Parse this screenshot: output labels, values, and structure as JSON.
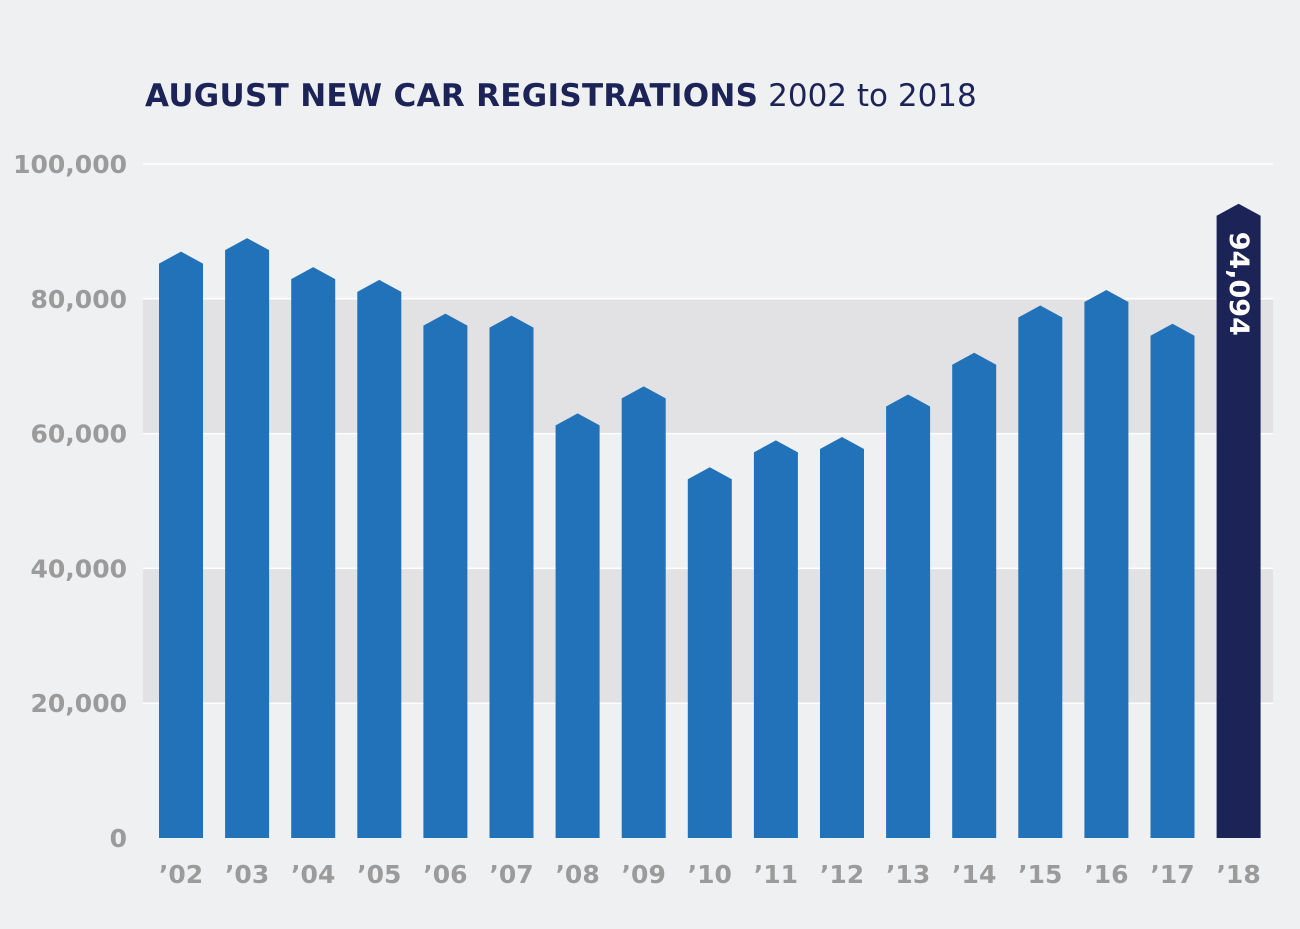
{
  "title": {
    "bold": "AUGUST NEW CAR REGISTRATIONS",
    "light": "2002 to 2018"
  },
  "colors": {
    "bar": "#2172b9",
    "highlight": "#1c2356",
    "band": "#e2e1e3",
    "background": "#eff0f2",
    "grid": "#ffffff",
    "axis_text": "#9b9b9b"
  },
  "chart_data": {
    "type": "bar",
    "title": "AUGUST NEW CAR REGISTRATIONS 2002 to 2018",
    "categories": [
      "’02",
      "’03",
      "’04",
      "’05",
      "’06",
      "’07",
      "’08",
      "’09",
      "’10",
      "’11",
      "’12",
      "’13",
      "’14",
      "’15",
      "’16",
      "’17",
      "’18"
    ],
    "values": [
      87000,
      89000,
      84700,
      82800,
      77800,
      77500,
      63000,
      67000,
      55000,
      59000,
      59500,
      65800,
      72000,
      79000,
      81300,
      76300,
      94094
    ],
    "highlight_index": 16,
    "data_labels": {
      "16": "94,094"
    },
    "yticks": [
      0,
      20000,
      40000,
      60000,
      80000,
      100000
    ],
    "ytick_labels": [
      "0",
      "20,000",
      "40,000",
      "60,000",
      "80,000",
      "100,000"
    ],
    "ylim": [
      0,
      100000
    ],
    "xlabel": "",
    "ylabel": "",
    "grid": true,
    "legend": "none"
  }
}
